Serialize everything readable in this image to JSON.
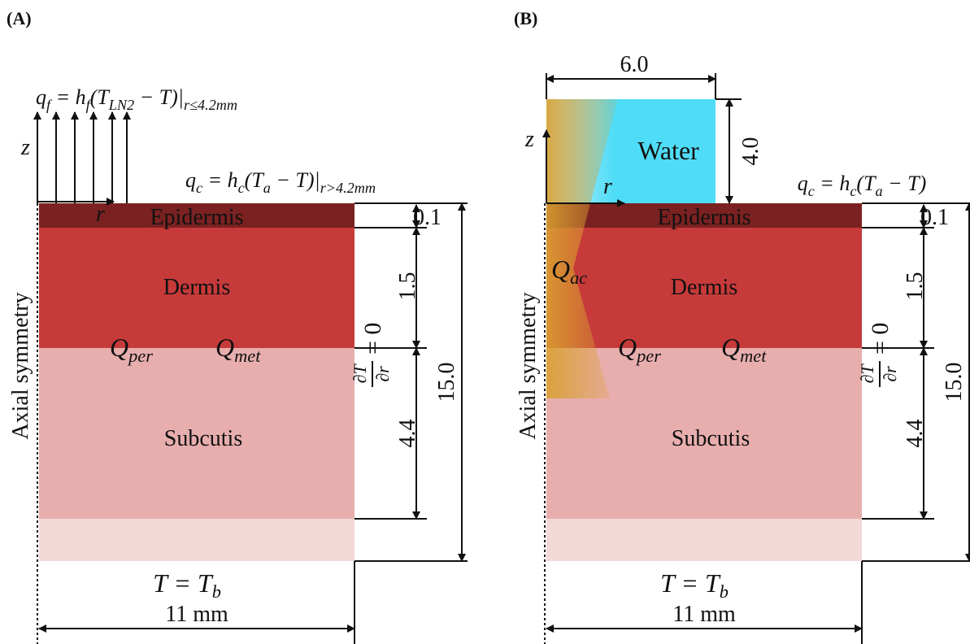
{
  "panel_a": {
    "label": "(A)",
    "flux_top": [
      "q",
      "f",
      " = h",
      "f",
      "(T",
      "LN2",
      " − T)|",
      "r≤4.2mm"
    ],
    "axis_z": "z",
    "axis_r": "r",
    "flux_conv": [
      "q",
      "c",
      " = h",
      "c",
      "(T",
      "a",
      " − T)|",
      "r>4.2mm"
    ],
    "layers": [
      "Epidermis",
      "Dermis",
      "Subcutis"
    ],
    "sources": [
      [
        "Q",
        "per"
      ],
      [
        "Q",
        "met"
      ]
    ],
    "boundary_right": {
      "numerator": "∂T",
      "denominator": "∂r",
      "rhs": "= 0"
    },
    "thickness": [
      "0.1",
      "1.5",
      "4.4"
    ],
    "total": "15.0",
    "symmetry": "Axial symmetry",
    "boundary_bottom": [
      "T = T",
      "b"
    ],
    "width": "11 mm"
  },
  "panel_b": {
    "label": "(B)",
    "water": "Water",
    "water_width": "6.0",
    "water_height": "4.0",
    "axis_z": "z",
    "axis_r": "r",
    "flux_conv": [
      "q",
      "c",
      " = h",
      "c",
      "(T",
      "a",
      " − T)"
    ],
    "source_ac": [
      "Q",
      "ac"
    ],
    "layers": [
      "Epidermis",
      "Dermis",
      "Subcutis"
    ],
    "sources": [
      [
        "Q",
        "per"
      ],
      [
        "Q",
        "met"
      ]
    ],
    "boundary_right": {
      "numerator": "∂T",
      "denominator": "∂r",
      "rhs": "= 0"
    },
    "thickness": [
      "0.1",
      "1.5",
      "4.4"
    ],
    "total": "15.0",
    "symmetry": "Axial symmetry",
    "boundary_bottom": [
      "T = T",
      "b"
    ],
    "width": "11 mm"
  }
}
